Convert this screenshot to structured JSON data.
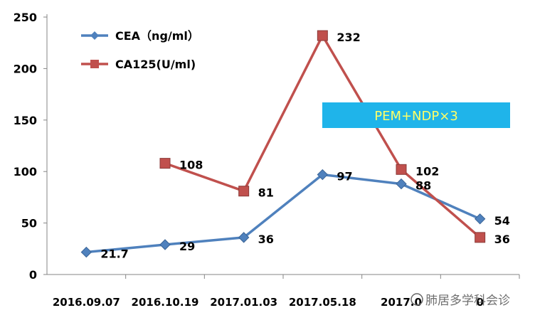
{
  "chart_data": {
    "type": "line",
    "title": "",
    "xlabel": "",
    "ylabel": "",
    "categories": [
      "2016.09.07",
      "2016.10.19",
      "2017.01.03",
      "2017.05.18",
      "2017.0",
      "0"
    ],
    "ylim": [
      0,
      250
    ],
    "yticks": [
      0,
      50,
      100,
      150,
      200,
      250
    ],
    "grid": false,
    "legend_position": "top-left",
    "series": [
      {
        "name": "CEA（ng/ml）",
        "color": "#4F81BD",
        "marker": "diamond",
        "values": [
          21.7,
          29,
          36,
          97,
          88,
          54
        ],
        "labels": [
          "21.7",
          "29",
          "36",
          "97",
          "88",
          "54"
        ]
      },
      {
        "name": "CA125(U/ml)",
        "color": "#C0504D",
        "marker": "square",
        "values": [
          null,
          108,
          81,
          232,
          102,
          36
        ],
        "labels": [
          "",
          "108",
          "81",
          "232",
          "102",
          "36"
        ]
      }
    ],
    "annotation": {
      "text": "PEM+NDP×3",
      "background": "#1FB4EA",
      "text_color": "#FFFF66"
    },
    "watermark": "肺居多学科会诊"
  }
}
